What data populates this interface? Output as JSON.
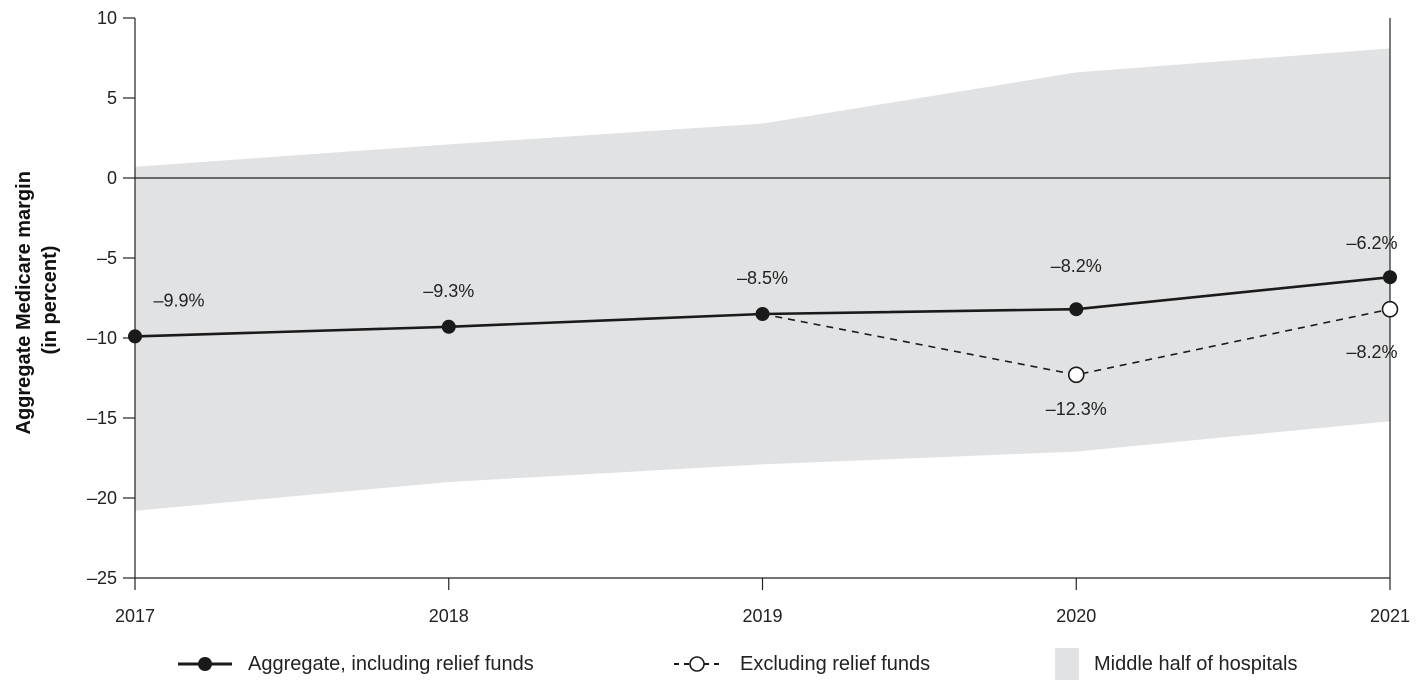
{
  "chart_data": {
    "type": "line",
    "x": [
      "2017",
      "2018",
      "2019",
      "2020",
      "2021"
    ],
    "ylabel_lines": [
      "Aggregate Medicare margin",
      "(in percent)"
    ],
    "ylim": [
      -25,
      10
    ],
    "yticks": [
      10,
      5,
      0,
      -5,
      -10,
      -15,
      -20,
      -25
    ],
    "ytick_labels": [
      "10",
      "5",
      "0",
      "–5",
      "–10",
      "–15",
      "–20",
      "–25"
    ],
    "grid": false,
    "legend_position": "bottom",
    "series": [
      {
        "name": "Aggregate, including relief funds",
        "style": "solid-filled-markers",
        "values": [
          -9.9,
          -9.3,
          -8.5,
          -8.2,
          -6.2
        ],
        "labels": [
          "–9.9%",
          "–9.3%",
          "–8.5%",
          "–8.2%",
          "–6.2%"
        ]
      },
      {
        "name": "Excluding relief funds",
        "style": "dashed-open-markers",
        "x": [
          "2019",
          "2020",
          "2021"
        ],
        "values": [
          -8.5,
          -12.3,
          -8.2
        ],
        "labels": [
          "–12.3%",
          "–8.2%"
        ]
      }
    ],
    "band": {
      "name": "Middle half of hospitals",
      "upper": [
        0.7,
        2.1,
        3.4,
        6.6,
        8.1
      ],
      "lower": [
        -20.8,
        -19.0,
        -17.9,
        -17.1,
        -15.2
      ]
    },
    "colors": {
      "line": "#1a1a1a",
      "band": "#e1e2e4",
      "zero_line": "#222222"
    }
  }
}
